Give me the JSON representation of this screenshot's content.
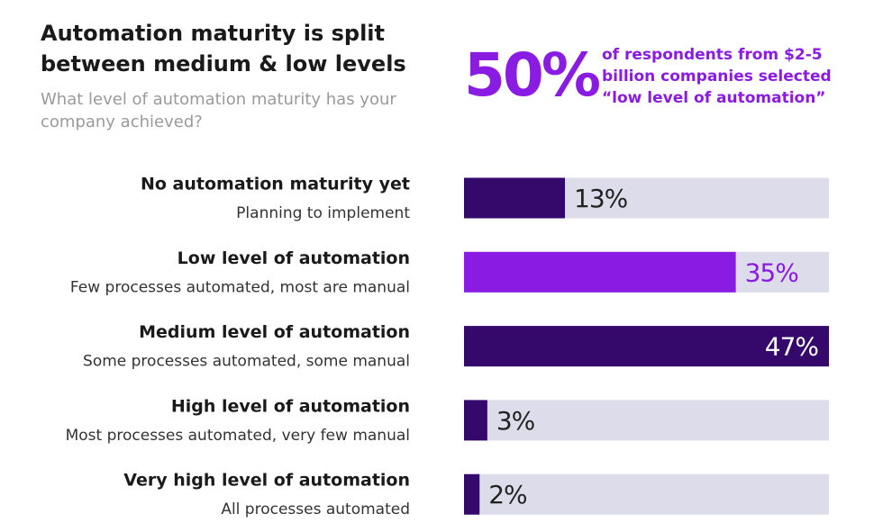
{
  "chart_data": {
    "type": "bar",
    "title_lines": [
      "Automation maturity is split",
      "between medium & low levels"
    ],
    "subtitle_lines": [
      "What level of automation maturity has your",
      "company achieved?"
    ],
    "annotation": {
      "number": "50%",
      "lines": [
        "of respondents from $2-5",
        "billion companies selected",
        "“low level of automation”"
      ]
    },
    "categories": [
      "No automation maturity yet",
      "Low level of automation",
      "Medium level of automation",
      "High level of automation",
      "Very high level of automation"
    ],
    "descriptions": [
      "Planning to implement",
      "Few processes automated, most are manual",
      "Some processes automated, some manual",
      "Most processes automated, very few manual",
      "All processes automated"
    ],
    "values": [
      13,
      35,
      47,
      3,
      2
    ],
    "value_labels": [
      "13%",
      "35%",
      "47%",
      "3%",
      "2%"
    ],
    "colors": [
      "#35086b",
      "#8a1be2",
      "#35086b",
      "#35086b",
      "#35086b"
    ],
    "track_color": "#dcdcea",
    "xlim": [
      0,
      47
    ]
  }
}
